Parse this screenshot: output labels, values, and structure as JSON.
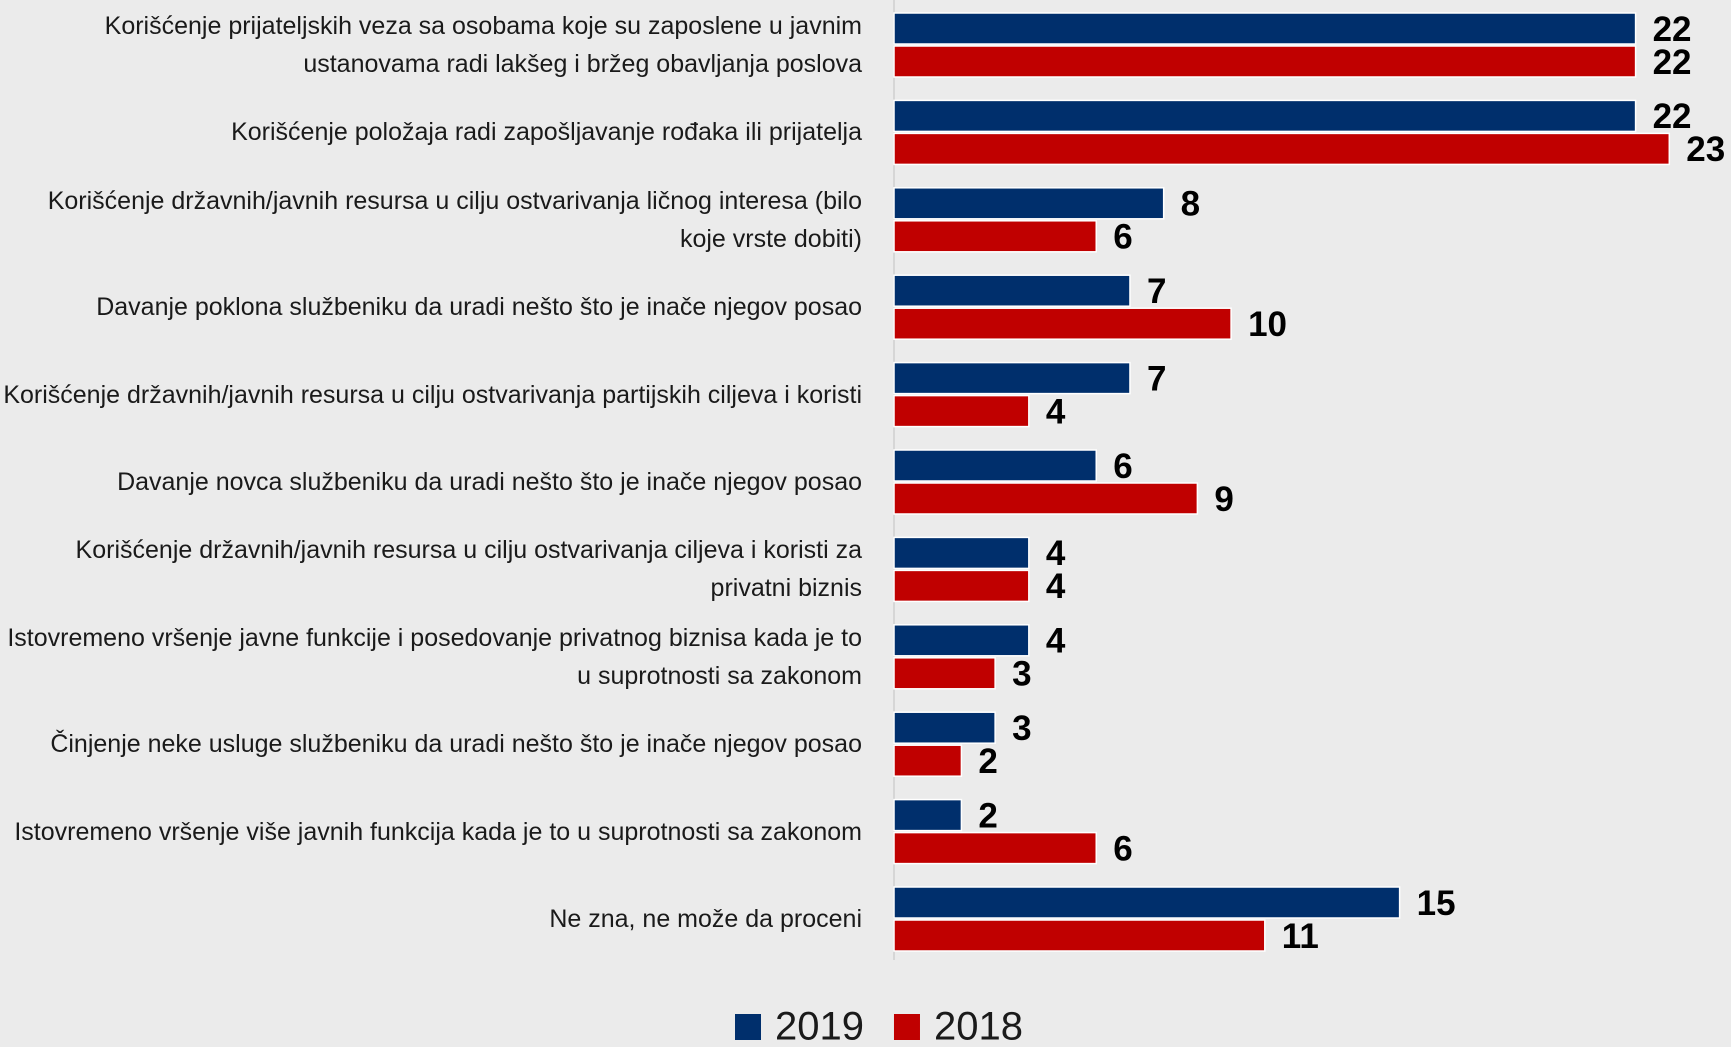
{
  "chart_data": {
    "type": "bar",
    "orientation": "horizontal",
    "categories": [
      "Korišćenje prijateljskih veza sa osobama koje su zaposlene u javnim ustanovama radi lakšeg i bržeg obavljanja poslova",
      "Korišćenje položaja radi zapošljavanje rođaka ili prijatelja",
      "Korišćenje državnih/javnih resursa u cilju ostvarivanja ličnog interesa (bilo koje vrste dobiti)",
      "Davanje poklona službeniku da uradi nešto što je inače njegov posao",
      "Korišćenje državnih/javnih resursa u cilju ostvarivanja partijskih ciljeva i koristi",
      "Davanje novca službeniku da uradi nešto što je inače njegov posao",
      "Korišćenje državnih/javnih resursa u cilju ostvarivanja ciljeva i koristi za privatni biznis",
      "Istovremeno vršenje javne funkcije i posedovanje privatnog biznisa kada je to u suprotnosti sa zakonom",
      "Činjenje neke usluge službeniku da uradi nešto što je inače njegov posao",
      "Istovremeno vršenje više javnih funkcija kada je to u suprotnosti sa zakonom",
      "Ne zna, ne može da proceni"
    ],
    "series": [
      {
        "name": "2019",
        "color": "#002f6c",
        "values": [
          22,
          22,
          8,
          7,
          7,
          6,
          4,
          4,
          3,
          2,
          15
        ]
      },
      {
        "name": "2018",
        "color": "#c00000",
        "values": [
          22,
          23,
          6,
          10,
          4,
          9,
          4,
          3,
          2,
          6,
          11
        ]
      }
    ],
    "xlim": [
      0,
      24
    ],
    "legend": "bottom"
  }
}
